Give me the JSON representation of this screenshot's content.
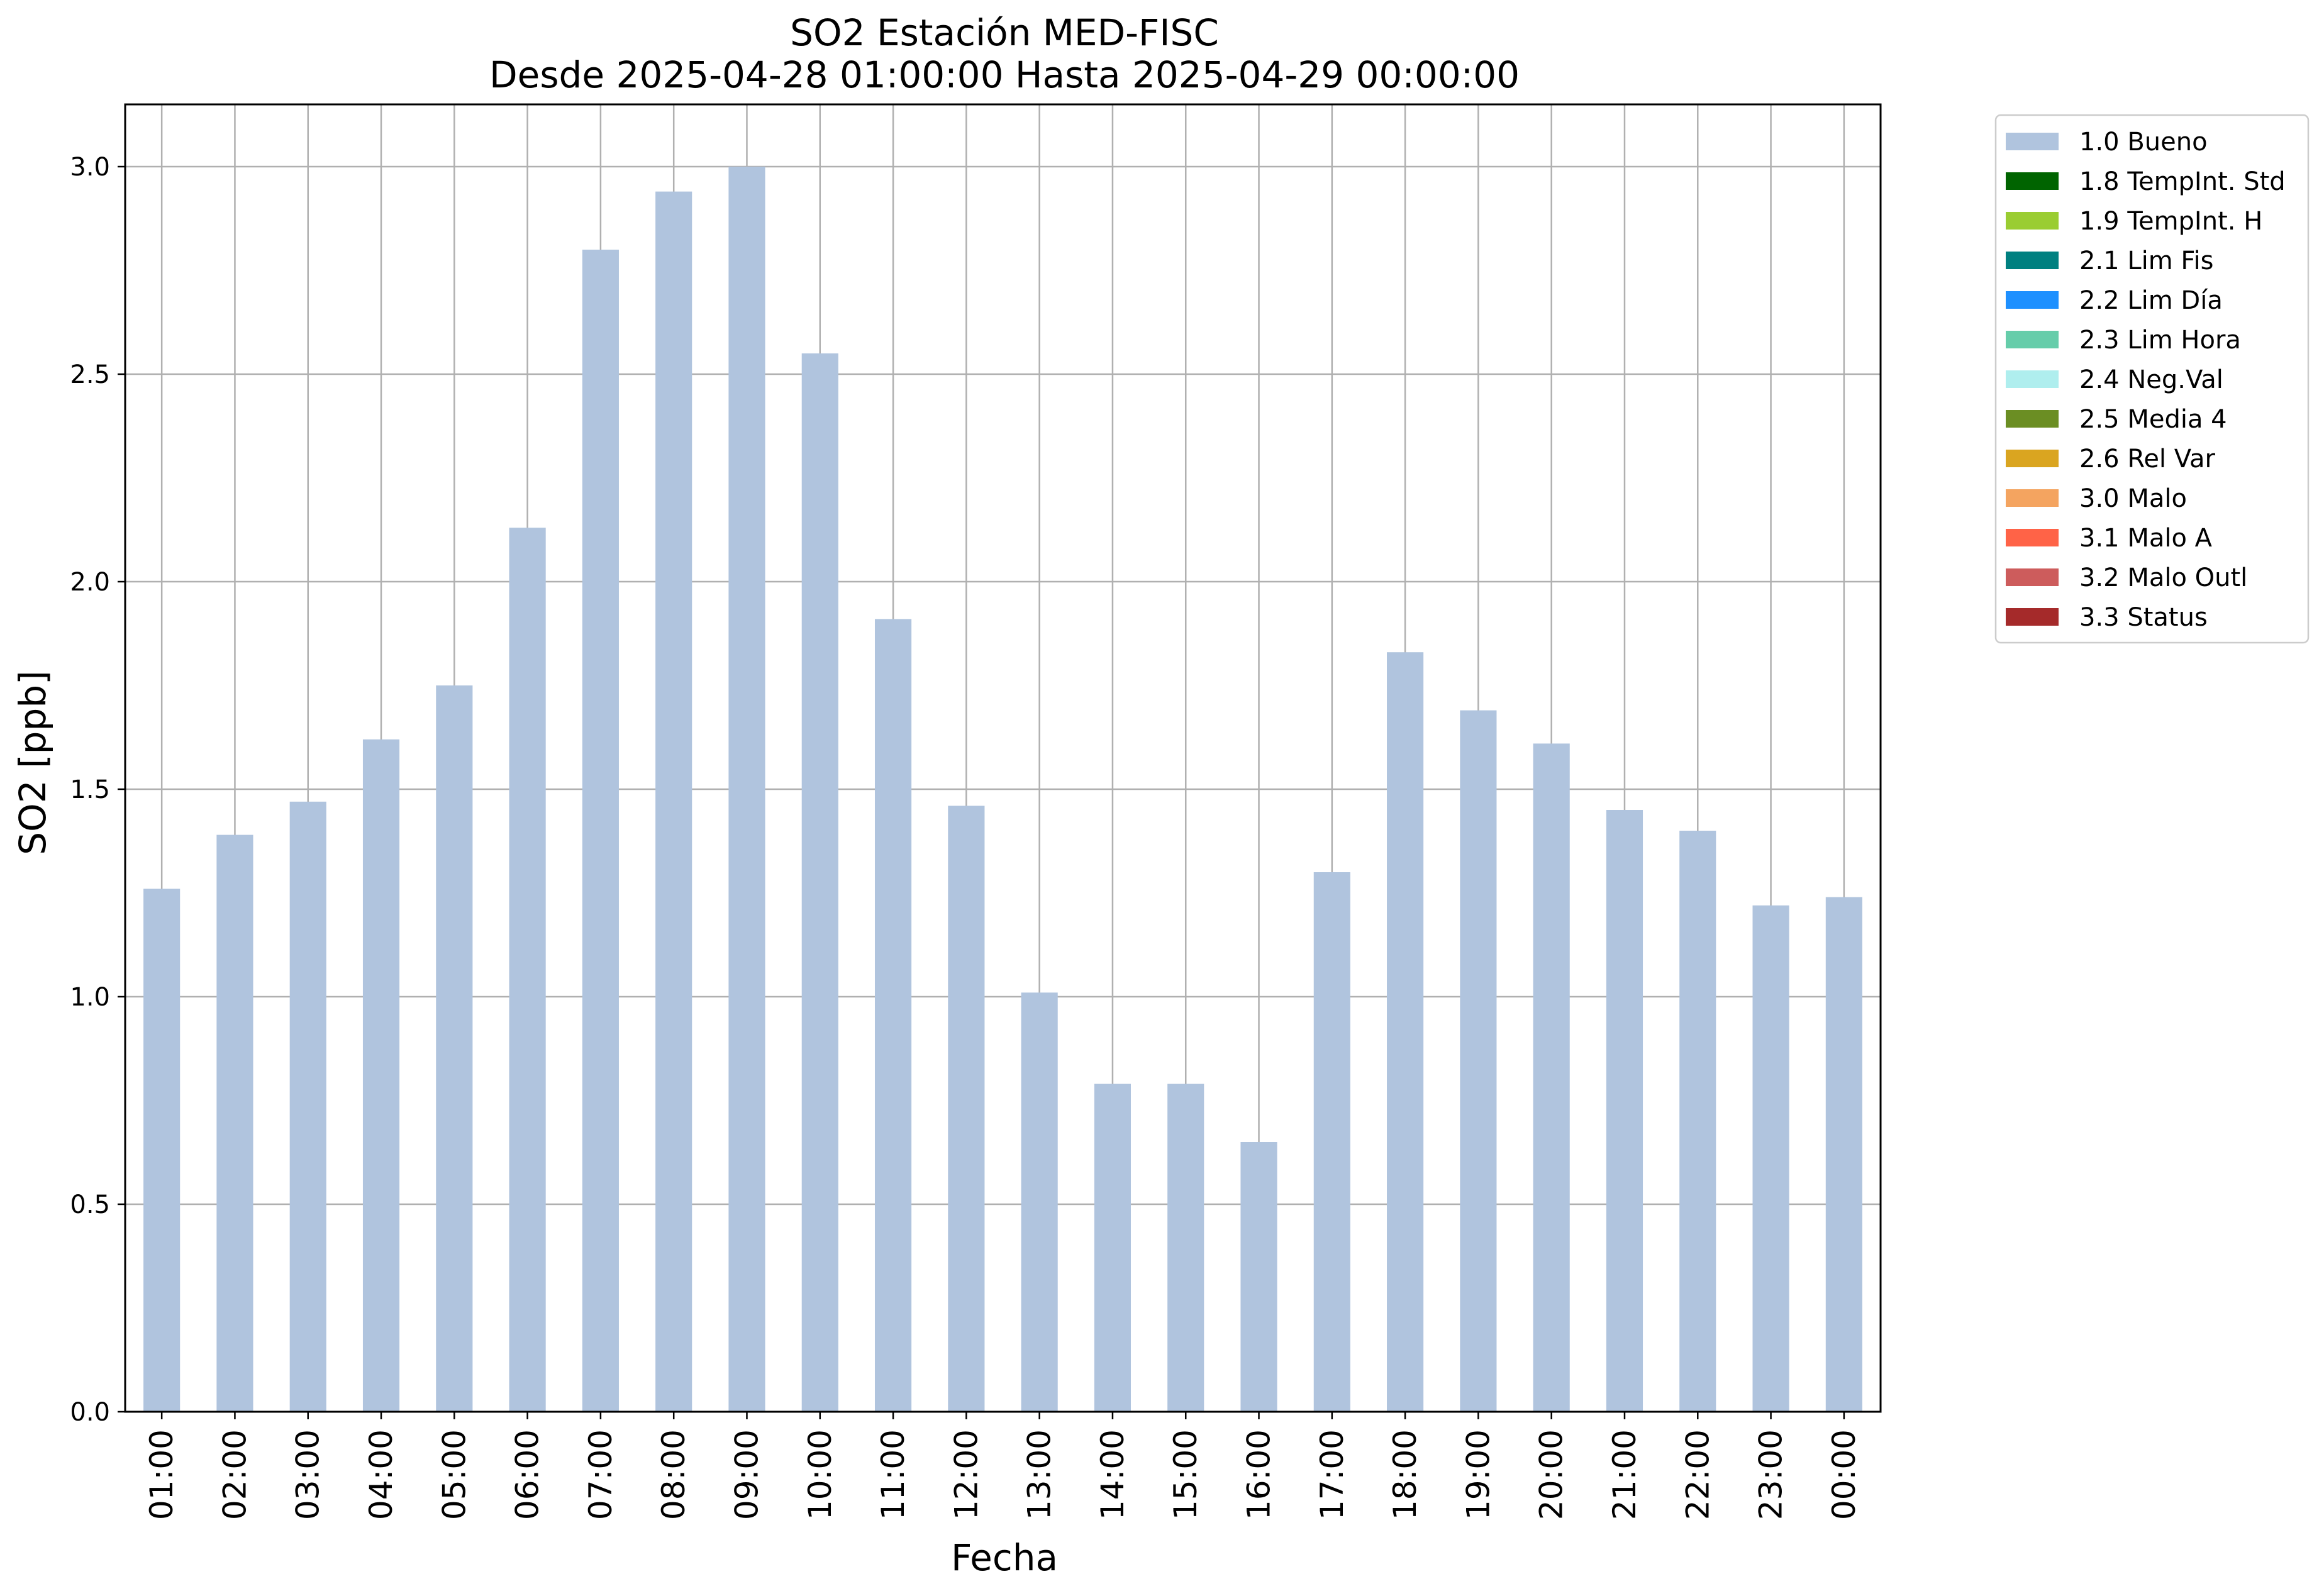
{
  "chart_data": {
    "type": "bar",
    "title": "SO2 Estación MED-FISC",
    "subtitle": "Desde 2025-04-28 01:00:00 Hasta 2025-04-29 00:00:00",
    "xlabel": "Fecha",
    "ylabel": "SO2 [ppb]",
    "ylim": [
      0,
      3.15
    ],
    "yticks": [
      0.0,
      0.5,
      1.0,
      1.5,
      2.0,
      2.5,
      3.0
    ],
    "ytick_labels": [
      "0.0",
      "0.5",
      "1.0",
      "1.5",
      "2.0",
      "2.5",
      "3.0"
    ],
    "grid": true,
    "legend_position": "outside-top-right",
    "categories": [
      "01:00",
      "02:00",
      "03:00",
      "04:00",
      "05:00",
      "06:00",
      "07:00",
      "08:00",
      "09:00",
      "10:00",
      "11:00",
      "12:00",
      "13:00",
      "14:00",
      "15:00",
      "16:00",
      "17:00",
      "18:00",
      "19:00",
      "20:00",
      "21:00",
      "22:00",
      "23:00",
      "00:00"
    ],
    "series": [
      {
        "name": "1.0 Bueno",
        "color": "#b0c4de",
        "values": [
          1.26,
          1.39,
          1.47,
          1.62,
          1.75,
          2.13,
          2.8,
          2.94,
          3.0,
          2.55,
          1.91,
          1.46,
          1.01,
          0.79,
          0.79,
          0.65,
          1.3,
          1.83,
          1.69,
          1.61,
          1.45,
          1.4,
          1.22,
          1.24
        ]
      }
    ],
    "legend": [
      {
        "label": "1.0 Bueno",
        "color": "#b0c4de"
      },
      {
        "label": "1.8 TempInt. Std",
        "color": "#006400"
      },
      {
        "label": "1.9 TempInt. H",
        "color": "#9acd32"
      },
      {
        "label": "2.1 Lim Fis",
        "color": "#008080"
      },
      {
        "label": "2.2 Lim Día",
        "color": "#1e90ff"
      },
      {
        "label": "2.3 Lim Hora",
        "color": "#66cdaa"
      },
      {
        "label": "2.4 Neg.Val",
        "color": "#afeeee"
      },
      {
        "label": "2.5 Media 4",
        "color": "#6b8e23"
      },
      {
        "label": "2.6 Rel Var",
        "color": "#daa520"
      },
      {
        "label": "3.0 Malo",
        "color": "#f4a460"
      },
      {
        "label": "3.1 Malo A",
        "color": "#ff6347"
      },
      {
        "label": "3.2 Malo Outl",
        "color": "#cd5c5c"
      },
      {
        "label": "3.3 Status",
        "color": "#a52a2a"
      }
    ]
  }
}
